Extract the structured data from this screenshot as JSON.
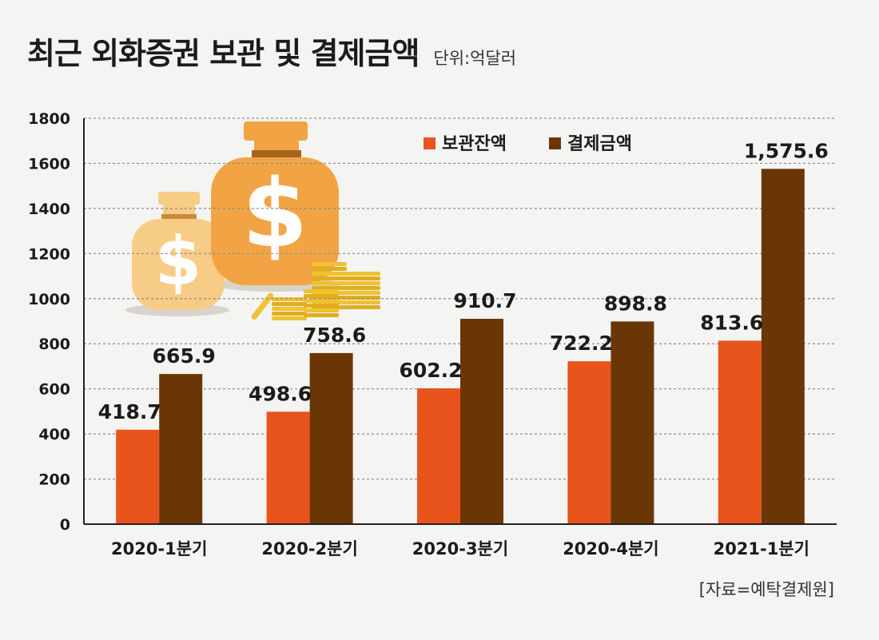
{
  "header": {
    "title": "최근 외화증권 보관 및 결제금액",
    "unit": "단위:억달러"
  },
  "source": "[자료=예탁결제원]",
  "colors": {
    "storage": "#e8541c",
    "settlement": "#6b3606",
    "grid": "#8a8a8a",
    "axis": "#222222",
    "bag_main": "#f2a444",
    "bag_light": "#f7cc87",
    "coin": "#f0c232"
  },
  "decoration": {
    "bag_large_icon": "money-bag-icon",
    "bag_small_icon": "money-bag-icon",
    "coins_icon": "gold-coins-icon"
  },
  "chart_data": {
    "type": "bar",
    "title": "최근 외화증권 보관 및 결제금액",
    "ylabel": "단위:억달러",
    "xlabel": "",
    "ylim": [
      0,
      1800
    ],
    "yticks": [
      0,
      200,
      400,
      600,
      800,
      1000,
      1200,
      1400,
      1600,
      1800
    ],
    "grid": true,
    "legend": "top-right",
    "categories": [
      "2020-1분기",
      "2020-2분기",
      "2020-3분기",
      "2020-4분기",
      "2021-1분기"
    ],
    "series": [
      {
        "name": "보관잔액",
        "values": [
          418.7,
          498.6,
          602.2,
          722.2,
          813.6
        ],
        "labels": [
          "418.7",
          "498.6",
          "602.2",
          "722.2",
          "813.6"
        ]
      },
      {
        "name": "결제금액",
        "values": [
          665.9,
          758.6,
          910.7,
          898.8,
          1575.6
        ],
        "labels": [
          "665.9",
          "758.6",
          "910.7",
          "898.8",
          "1,575.6"
        ]
      }
    ]
  }
}
